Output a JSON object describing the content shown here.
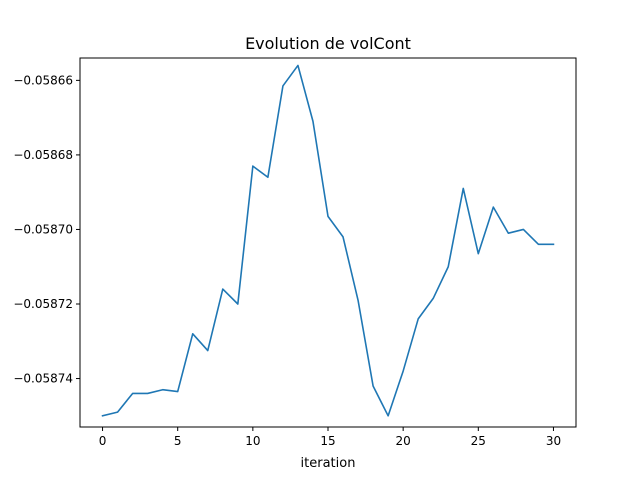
{
  "chart_data": {
    "type": "line",
    "title": "Evolution de volCont",
    "xlabel": "iteration",
    "ylabel": "",
    "xlim": [
      -1.5,
      31.5
    ],
    "ylim": [
      -0.058753,
      -0.058654
    ],
    "xticks": [
      0,
      5,
      10,
      15,
      20,
      25,
      30
    ],
    "yticks": [
      -0.05866,
      -0.05868,
      -0.0587,
      -0.05872,
      -0.05874
    ],
    "ytick_labels": [
      "−0.05866",
      "−0.05868",
      "−0.05870",
      "−0.05872",
      "−0.05874"
    ],
    "grid": false,
    "series": [
      {
        "name": "",
        "color": "#1f77b4",
        "x": [
          0,
          1,
          2,
          3,
          4,
          5,
          6,
          7,
          8,
          9,
          10,
          11,
          12,
          13,
          14,
          15,
          16,
          17,
          18,
          19,
          20,
          21,
          22,
          23,
          24,
          25,
          26,
          27,
          28,
          29,
          30
        ],
        "y": [
          -0.05875,
          -0.058749,
          -0.058744,
          -0.058744,
          -0.058743,
          -0.0587435,
          -0.058728,
          -0.0587325,
          -0.058716,
          -0.05872,
          -0.058683,
          -0.058686,
          -0.0586615,
          -0.058656,
          -0.058671,
          -0.0586965,
          -0.058702,
          -0.058719,
          -0.058742,
          -0.05875,
          -0.058738,
          -0.058724,
          -0.0587185,
          -0.05871,
          -0.058689,
          -0.0587065,
          -0.058694,
          -0.058701,
          -0.0587,
          -0.058704,
          -0.058704
        ]
      }
    ]
  }
}
